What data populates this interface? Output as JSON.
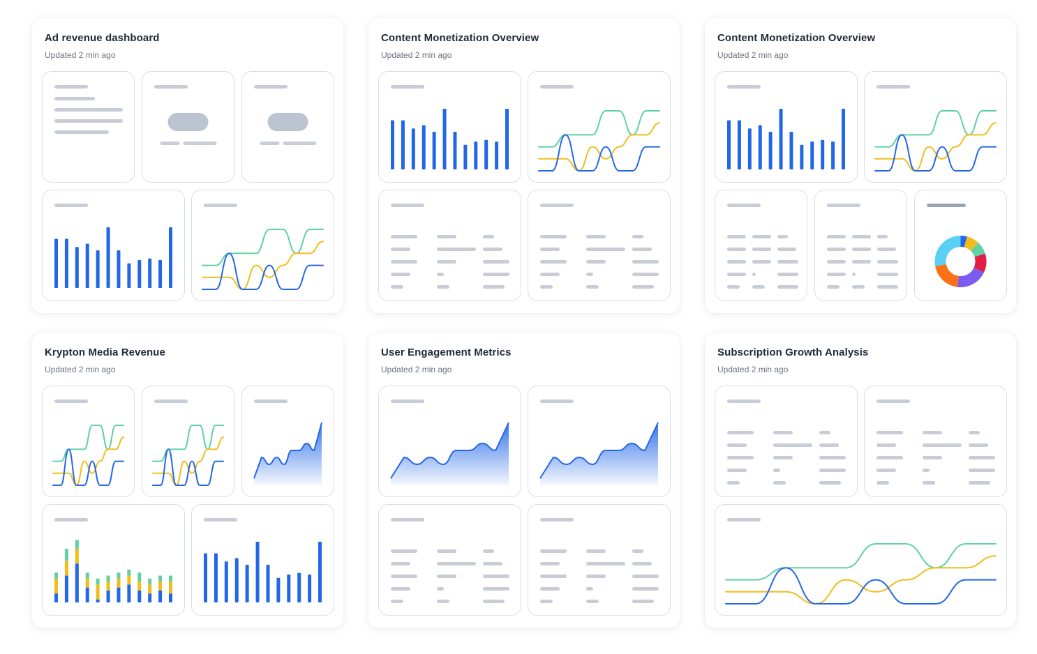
{
  "colors": {
    "blue": "#2267e8",
    "yellow": "#f0bd1c",
    "green": "#5fd1a2",
    "placeholder": "#c7ccd6",
    "pill": "#bcc3d1"
  },
  "cards": [
    {
      "title": "Ad revenue dashboard",
      "subtitle": "Updated 2 min ago"
    },
    {
      "title": "Content Monetization Overview",
      "subtitle": "Updated 2 min ago"
    },
    {
      "title": "Content Monetization Overview",
      "subtitle": "Updated 2 min ago"
    },
    {
      "title": "Krypton Media Revenue",
      "subtitle": "Updated 2 min ago"
    },
    {
      "title": "User Engagement Metrics",
      "subtitle": "Updated 2 min ago"
    },
    {
      "title": "Subscription Growth Analysis",
      "subtitle": "Updated 2 min ago"
    }
  ],
  "chart_data": [
    {
      "type": "bar",
      "values": [
        30,
        30,
        25,
        27,
        23,
        37,
        23,
        15,
        17,
        18,
        17,
        37
      ]
    },
    {
      "type": "stacked_bar",
      "series": [
        {
          "color": "blue",
          "values": [
            3,
            9,
            13,
            5,
            1,
            4,
            5,
            6,
            4,
            3,
            4,
            3
          ]
        },
        {
          "color": "yellow",
          "values": [
            5,
            5,
            5,
            3,
            5,
            3,
            3,
            3,
            3,
            3,
            3,
            4
          ]
        },
        {
          "color": "green",
          "values": [
            2,
            4,
            3,
            2,
            2,
            2,
            2,
            2,
            3,
            2,
            2,
            2
          ]
        }
      ]
    },
    {
      "type": "line",
      "series": [
        {
          "color": "green",
          "values": [
            3,
            3,
            4,
            4,
            4,
            6,
            6,
            4,
            6,
            6
          ]
        },
        {
          "color": "yellow",
          "values": [
            2,
            2,
            2,
            1,
            3,
            2,
            3,
            4,
            4,
            5
          ]
        },
        {
          "color": "blue",
          "values": [
            1,
            1,
            4,
            1,
            1,
            3,
            1,
            1,
            3,
            3
          ]
        }
      ]
    },
    {
      "type": "area",
      "values": [
        1,
        4,
        3,
        4,
        3,
        5,
        5,
        6,
        5,
        9
      ]
    },
    {
      "type": "pie",
      "slices": [
        {
          "color": "#2267e8",
          "value": 4
        },
        {
          "color": "#f0bd1c",
          "value": 8
        },
        {
          "color": "#5fd1a2",
          "value": 8
        },
        {
          "color": "#e11d48",
          "value": 12
        },
        {
          "color": "#7c5cf0",
          "value": 20
        },
        {
          "color": "#f97316",
          "value": 20
        },
        {
          "color": "#5ad0f5",
          "value": 28
        }
      ]
    }
  ]
}
